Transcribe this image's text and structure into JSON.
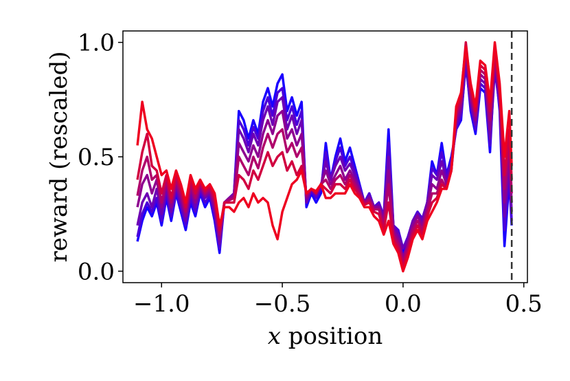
{
  "chart_data": {
    "type": "line",
    "xlabel_italic": "x",
    "xlabel_rest": " position",
    "ylabel": "reward (rescaled)",
    "xlim": [
      -1.16,
      0.515
    ],
    "ylim": [
      -0.05,
      1.05
    ],
    "x_ticks": [
      -1.0,
      -0.5,
      0.0,
      0.5
    ],
    "x_tick_labels": [
      "−1.0",
      "−0.5",
      "0.0",
      "0.5"
    ],
    "y_ticks": [
      0.0,
      0.5,
      1.0
    ],
    "y_tick_labels": [
      "0.0",
      "0.5",
      "1.0"
    ],
    "vline": {
      "x": 0.45,
      "style": "dashed",
      "color": "#333333"
    },
    "grid": false,
    "legend": "none",
    "colors": [
      "#1a00ff",
      "#4b00d9",
      "#6d00b4",
      "#8e0090",
      "#b0006b",
      "#d10040",
      "#ee0020"
    ],
    "x": [
      -1.1,
      -1.08,
      -1.06,
      -1.04,
      -1.02,
      -1.0,
      -0.98,
      -0.96,
      -0.94,
      -0.92,
      -0.9,
      -0.88,
      -0.86,
      -0.84,
      -0.82,
      -0.8,
      -0.78,
      -0.76,
      -0.74,
      -0.72,
      -0.7,
      -0.68,
      -0.66,
      -0.64,
      -0.62,
      -0.6,
      -0.58,
      -0.56,
      -0.54,
      -0.52,
      -0.5,
      -0.48,
      -0.46,
      -0.44,
      -0.42,
      -0.4,
      -0.38,
      -0.36,
      -0.34,
      -0.32,
      -0.3,
      -0.28,
      -0.26,
      -0.24,
      -0.22,
      -0.2,
      -0.18,
      -0.16,
      -0.14,
      -0.12,
      -0.1,
      -0.08,
      -0.06,
      -0.04,
      -0.02,
      0.0,
      0.02,
      0.04,
      0.06,
      0.08,
      0.1,
      0.12,
      0.14,
      0.16,
      0.18,
      0.2,
      0.22,
      0.24,
      0.26,
      0.28,
      0.3,
      0.32,
      0.34,
      0.36,
      0.38,
      0.4,
      0.42,
      0.44,
      0.45
    ],
    "series": [
      {
        "values": [
          0.13,
          0.22,
          0.28,
          0.24,
          0.3,
          0.2,
          0.32,
          0.22,
          0.34,
          0.26,
          0.18,
          0.3,
          0.24,
          0.34,
          0.28,
          0.32,
          0.22,
          0.08,
          0.3,
          0.32,
          0.34,
          0.7,
          0.66,
          0.58,
          0.66,
          0.6,
          0.74,
          0.8,
          0.72,
          0.82,
          0.86,
          0.7,
          0.76,
          0.68,
          0.74,
          0.28,
          0.34,
          0.3,
          0.34,
          0.56,
          0.4,
          0.5,
          0.58,
          0.48,
          0.54,
          0.46,
          0.38,
          0.3,
          0.34,
          0.28,
          0.3,
          0.24,
          0.62,
          0.2,
          0.18,
          0.08,
          0.14,
          0.22,
          0.26,
          0.22,
          0.3,
          0.48,
          0.42,
          0.56,
          0.42,
          0.5,
          0.62,
          0.66,
          0.92,
          0.7,
          0.6,
          0.8,
          0.78,
          0.52,
          0.92,
          0.7,
          0.11,
          0.4,
          0.2
        ]
      },
      {
        "values": [
          0.15,
          0.25,
          0.3,
          0.26,
          0.32,
          0.22,
          0.34,
          0.24,
          0.35,
          0.28,
          0.2,
          0.32,
          0.26,
          0.35,
          0.3,
          0.33,
          0.24,
          0.1,
          0.3,
          0.32,
          0.34,
          0.66,
          0.62,
          0.55,
          0.63,
          0.58,
          0.7,
          0.76,
          0.68,
          0.78,
          0.8,
          0.66,
          0.72,
          0.64,
          0.7,
          0.3,
          0.35,
          0.32,
          0.36,
          0.52,
          0.4,
          0.48,
          0.54,
          0.46,
          0.5,
          0.44,
          0.37,
          0.3,
          0.34,
          0.28,
          0.3,
          0.24,
          0.56,
          0.2,
          0.18,
          0.1,
          0.15,
          0.22,
          0.26,
          0.23,
          0.3,
          0.45,
          0.42,
          0.52,
          0.42,
          0.48,
          0.62,
          0.68,
          0.9,
          0.72,
          0.62,
          0.82,
          0.8,
          0.55,
          0.88,
          0.72,
          0.18,
          0.42,
          0.22
        ]
      },
      {
        "values": [
          0.2,
          0.3,
          0.34,
          0.28,
          0.36,
          0.25,
          0.36,
          0.26,
          0.37,
          0.3,
          0.22,
          0.34,
          0.28,
          0.36,
          0.32,
          0.34,
          0.26,
          0.12,
          0.3,
          0.32,
          0.34,
          0.62,
          0.58,
          0.52,
          0.6,
          0.55,
          0.66,
          0.72,
          0.64,
          0.74,
          0.76,
          0.62,
          0.68,
          0.6,
          0.66,
          0.3,
          0.36,
          0.33,
          0.37,
          0.48,
          0.4,
          0.46,
          0.5,
          0.44,
          0.47,
          0.42,
          0.36,
          0.3,
          0.33,
          0.28,
          0.29,
          0.24,
          0.5,
          0.2,
          0.16,
          0.1,
          0.14,
          0.22,
          0.25,
          0.22,
          0.3,
          0.42,
          0.4,
          0.48,
          0.4,
          0.46,
          0.64,
          0.7,
          0.94,
          0.74,
          0.64,
          0.84,
          0.82,
          0.58,
          0.9,
          0.74,
          0.24,
          0.46,
          0.26
        ]
      },
      {
        "values": [
          0.28,
          0.38,
          0.42,
          0.34,
          0.4,
          0.28,
          0.38,
          0.28,
          0.38,
          0.32,
          0.24,
          0.36,
          0.3,
          0.37,
          0.33,
          0.35,
          0.28,
          0.14,
          0.3,
          0.32,
          0.33,
          0.56,
          0.52,
          0.48,
          0.55,
          0.5,
          0.6,
          0.66,
          0.6,
          0.68,
          0.7,
          0.58,
          0.62,
          0.55,
          0.6,
          0.32,
          0.36,
          0.34,
          0.38,
          0.44,
          0.38,
          0.42,
          0.46,
          0.4,
          0.44,
          0.4,
          0.35,
          0.3,
          0.32,
          0.28,
          0.28,
          0.22,
          0.44,
          0.18,
          0.14,
          0.06,
          0.12,
          0.2,
          0.24,
          0.2,
          0.28,
          0.38,
          0.36,
          0.44,
          0.38,
          0.44,
          0.66,
          0.72,
          0.96,
          0.76,
          0.66,
          0.86,
          0.84,
          0.62,
          0.92,
          0.76,
          0.3,
          0.5,
          0.3
        ]
      },
      {
        "values": [
          0.33,
          0.44,
          0.5,
          0.4,
          0.42,
          0.3,
          0.4,
          0.3,
          0.4,
          0.34,
          0.26,
          0.38,
          0.32,
          0.38,
          0.34,
          0.36,
          0.3,
          0.16,
          0.3,
          0.31,
          0.32,
          0.5,
          0.46,
          0.42,
          0.5,
          0.45,
          0.54,
          0.6,
          0.54,
          0.6,
          0.62,
          0.52,
          0.56,
          0.5,
          0.54,
          0.33,
          0.36,
          0.34,
          0.38,
          0.4,
          0.36,
          0.4,
          0.42,
          0.38,
          0.42,
          0.38,
          0.34,
          0.3,
          0.31,
          0.27,
          0.27,
          0.2,
          0.38,
          0.16,
          0.12,
          0.04,
          0.1,
          0.18,
          0.22,
          0.18,
          0.26,
          0.34,
          0.34,
          0.4,
          0.36,
          0.44,
          0.68,
          0.74,
          0.98,
          0.78,
          0.68,
          0.88,
          0.86,
          0.66,
          0.94,
          0.78,
          0.36,
          0.56,
          0.34
        ]
      },
      {
        "values": [
          0.4,
          0.52,
          0.6,
          0.46,
          0.44,
          0.34,
          0.42,
          0.32,
          0.42,
          0.36,
          0.28,
          0.4,
          0.34,
          0.39,
          0.35,
          0.37,
          0.32,
          0.18,
          0.3,
          0.3,
          0.3,
          0.42,
          0.4,
          0.36,
          0.44,
          0.4,
          0.46,
          0.52,
          0.46,
          0.5,
          0.52,
          0.44,
          0.48,
          0.42,
          0.46,
          0.34,
          0.36,
          0.34,
          0.38,
          0.36,
          0.34,
          0.38,
          0.38,
          0.36,
          0.4,
          0.36,
          0.33,
          0.29,
          0.3,
          0.26,
          0.25,
          0.18,
          0.3,
          0.14,
          0.1,
          0.02,
          0.08,
          0.16,
          0.2,
          0.16,
          0.24,
          0.3,
          0.32,
          0.38,
          0.36,
          0.44,
          0.7,
          0.76,
          1.0,
          0.8,
          0.7,
          0.9,
          0.88,
          0.7,
          0.96,
          0.8,
          0.42,
          0.62,
          0.4
        ]
      },
      {
        "values": [
          0.55,
          0.74,
          0.62,
          0.58,
          0.5,
          0.42,
          0.44,
          0.36,
          0.44,
          0.38,
          0.3,
          0.42,
          0.36,
          0.4,
          0.36,
          0.38,
          0.34,
          0.2,
          0.28,
          0.28,
          0.26,
          0.3,
          0.32,
          0.28,
          0.34,
          0.3,
          0.32,
          0.3,
          0.2,
          0.14,
          0.26,
          0.32,
          0.38,
          0.4,
          0.44,
          0.34,
          0.36,
          0.35,
          0.38,
          0.32,
          0.32,
          0.34,
          0.34,
          0.34,
          0.38,
          0.34,
          0.32,
          0.28,
          0.28,
          0.24,
          0.22,
          0.16,
          0.22,
          0.12,
          0.08,
          0.0,
          0.06,
          0.14,
          0.18,
          0.14,
          0.22,
          0.26,
          0.3,
          0.36,
          0.36,
          0.44,
          0.72,
          0.78,
          0.98,
          0.82,
          0.72,
          0.92,
          0.9,
          0.74,
          1.0,
          0.82,
          0.5,
          0.7,
          0.46
        ]
      }
    ]
  }
}
